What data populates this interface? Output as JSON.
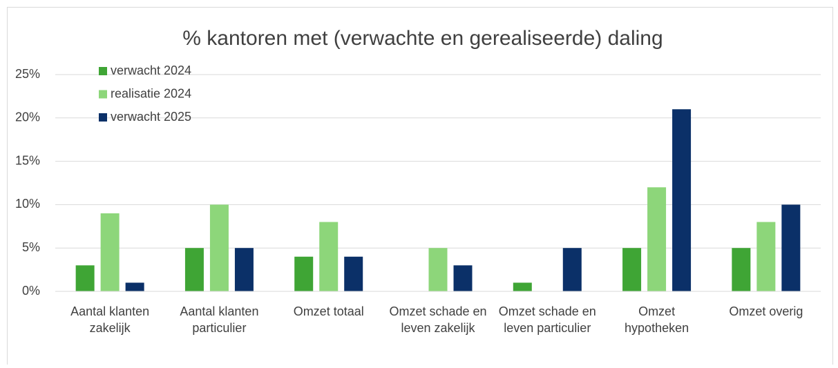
{
  "chart_data": {
    "type": "bar",
    "title": "% kantoren met (verwachte en gerealiseerde) daling",
    "categories": [
      "Aantal klanten zakelijk",
      "Aantal klanten particulier",
      "Omzet totaal",
      "Omzet schade en leven zakelijk",
      "Omzet schade en leven particulier",
      "Omzet hypotheken",
      "Omzet overig"
    ],
    "series": [
      {
        "name": "verwacht 2024",
        "color": "#3fa535",
        "values": [
          3,
          5,
          4,
          0,
          1,
          5,
          5
        ]
      },
      {
        "name": "realisatie 2024",
        "color": "#8dd67a",
        "values": [
          9,
          10,
          8,
          5,
          0,
          12,
          8
        ]
      },
      {
        "name": "verwacht 2025",
        "color": "#0b3068",
        "values": [
          1,
          5,
          4,
          3,
          5,
          21,
          10
        ]
      }
    ],
    "ylim": [
      0,
      25
    ],
    "yticks": [
      {
        "value": 0,
        "label": "0%"
      },
      {
        "value": 5,
        "label": "5%"
      },
      {
        "value": 10,
        "label": "10%"
      },
      {
        "value": 15,
        "label": "15%"
      },
      {
        "value": 20,
        "label": "20%"
      },
      {
        "value": 25,
        "label": "25%"
      }
    ],
    "grid": true,
    "legend": "top-left"
  }
}
